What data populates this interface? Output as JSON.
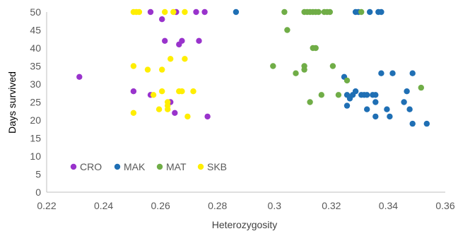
{
  "chart_data": {
    "type": "scatter",
    "xlabel": "Heterozygosity",
    "ylabel": "Days survived",
    "xlim": [
      0.22,
      0.36
    ],
    "ylim": [
      0,
      50
    ],
    "x_ticks": [
      "0.22",
      "0.24",
      "0.26",
      "0.28",
      "0.3",
      "0.32",
      "0.34",
      "0.36"
    ],
    "y_ticks": [
      "0",
      "5",
      "10",
      "15",
      "20",
      "25",
      "30",
      "35",
      "40",
      "45",
      "50"
    ],
    "grid": false,
    "legend_position": "bottom-left inside",
    "series": [
      {
        "name": "CRO",
        "color": "#9933CC",
        "points": [
          [
            0.2315,
            32
          ],
          [
            0.2505,
            28
          ],
          [
            0.2565,
            50
          ],
          [
            0.2565,
            27
          ],
          [
            0.2605,
            48
          ],
          [
            0.2615,
            42
          ],
          [
            0.2635,
            25
          ],
          [
            0.2655,
            50
          ],
          [
            0.265,
            22
          ],
          [
            0.2665,
            41
          ],
          [
            0.2675,
            42
          ],
          [
            0.2725,
            50
          ],
          [
            0.2735,
            42
          ],
          [
            0.2755,
            50
          ],
          [
            0.2765,
            21
          ]
        ]
      },
      {
        "name": "MAK",
        "color": "#1F6FB4",
        "points": [
          [
            0.2865,
            50
          ],
          [
            0.3245,
            32
          ],
          [
            0.3255,
            24
          ],
          [
            0.3255,
            27
          ],
          [
            0.3265,
            26
          ],
          [
            0.3275,
            27
          ],
          [
            0.3285,
            28
          ],
          [
            0.3285,
            50
          ],
          [
            0.3295,
            50
          ],
          [
            0.3305,
            27
          ],
          [
            0.3315,
            27
          ],
          [
            0.3325,
            23
          ],
          [
            0.3325,
            27
          ],
          [
            0.3335,
            50
          ],
          [
            0.3345,
            27
          ],
          [
            0.3355,
            27
          ],
          [
            0.3355,
            25
          ],
          [
            0.3355,
            21
          ],
          [
            0.3365,
            50
          ],
          [
            0.3375,
            50
          ],
          [
            0.3375,
            33
          ],
          [
            0.3395,
            23
          ],
          [
            0.3405,
            21
          ],
          [
            0.3415,
            33
          ],
          [
            0.3455,
            25
          ],
          [
            0.3465,
            28
          ],
          [
            0.3475,
            23
          ],
          [
            0.3485,
            19
          ],
          [
            0.3485,
            33
          ],
          [
            0.3535,
            19
          ]
        ]
      },
      {
        "name": "MAT",
        "color": "#70AD47",
        "points": [
          [
            0.2995,
            35
          ],
          [
            0.3035,
            50
          ],
          [
            0.3045,
            45
          ],
          [
            0.3075,
            33
          ],
          [
            0.3105,
            50
          ],
          [
            0.3105,
            35
          ],
          [
            0.3105,
            34
          ],
          [
            0.3115,
            50
          ],
          [
            0.3125,
            50
          ],
          [
            0.3135,
            50
          ],
          [
            0.3145,
            50
          ],
          [
            0.3155,
            50
          ],
          [
            0.3125,
            25
          ],
          [
            0.3135,
            40
          ],
          [
            0.3145,
            40
          ],
          [
            0.3165,
            27
          ],
          [
            0.3175,
            50
          ],
          [
            0.3185,
            50
          ],
          [
            0.3195,
            50
          ],
          [
            0.3205,
            35
          ],
          [
            0.3225,
            27
          ],
          [
            0.3255,
            31
          ],
          [
            0.3305,
            50
          ],
          [
            0.3515,
            29
          ]
        ]
      },
      {
        "name": "SKB",
        "color": "#FFEE00",
        "points": [
          [
            0.2505,
            50
          ],
          [
            0.2515,
            50
          ],
          [
            0.2525,
            50
          ],
          [
            0.2505,
            35
          ],
          [
            0.2505,
            22
          ],
          [
            0.2555,
            34
          ],
          [
            0.2575,
            27
          ],
          [
            0.2595,
            23
          ],
          [
            0.2605,
            28
          ],
          [
            0.2605,
            34
          ],
          [
            0.2615,
            50
          ],
          [
            0.2625,
            24
          ],
          [
            0.2625,
            25
          ],
          [
            0.2625,
            23
          ],
          [
            0.2635,
            37
          ],
          [
            0.2645,
            50
          ],
          [
            0.2665,
            28
          ],
          [
            0.2675,
            28
          ],
          [
            0.2685,
            37
          ],
          [
            0.2685,
            50
          ],
          [
            0.2695,
            21
          ],
          [
            0.2715,
            28
          ]
        ]
      }
    ]
  }
}
